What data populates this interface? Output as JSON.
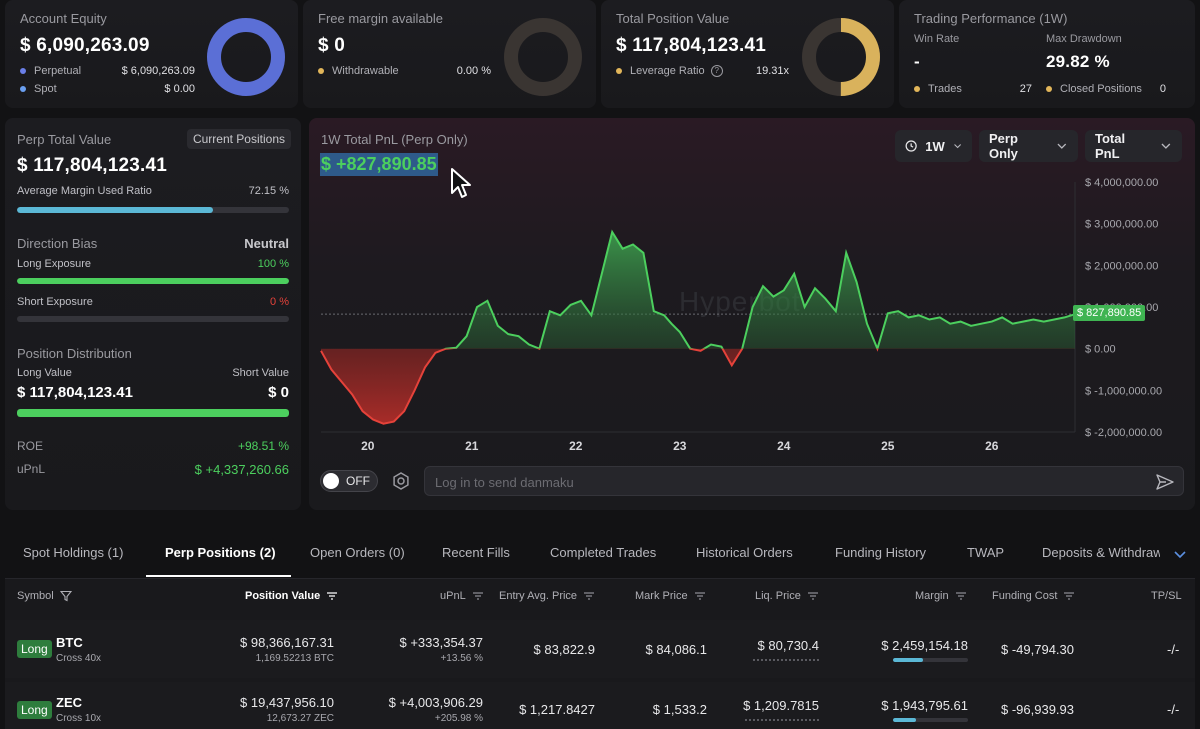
{
  "account_equity": {
    "title": "Account Equity",
    "value": "$ 6,090,263.09",
    "rows": [
      {
        "label": "Perpetual",
        "value": "$ 6,090,263.09"
      },
      {
        "label": "Spot",
        "value": "$ 0.00"
      }
    ],
    "donut_color": "#5b6fd6",
    "dot_colors": [
      "#6a7fe8",
      "#6a9ff0"
    ]
  },
  "free_margin": {
    "title": "Free margin available",
    "value": "$ 0",
    "row_label": "Withdrawable",
    "row_value": "0.00 %",
    "dot_color": "#e2b65a"
  },
  "total_position": {
    "title": "Total Position Value",
    "value": "$ 117,804,123.41",
    "row_label": "Leverage Ratio",
    "row_value": "19.31x",
    "donut_color": "#d9b25c",
    "donut_fraction": 0.5
  },
  "trading_perf": {
    "title": "Trading Performance (1W)",
    "win_rate_label": "Win Rate",
    "win_rate_value": "-",
    "max_dd_label": "Max Drawdown",
    "max_dd_value": "29.82 %",
    "trades_label": "Trades",
    "trades_value": "27",
    "closed_label": "Closed Positions",
    "closed_value": "0"
  },
  "perp_panel": {
    "title": "Perp Total Value",
    "current_positions_button": "Current Positions",
    "value": "$ 117,804,123.41",
    "avg_margin_label": "Average Margin Used Ratio",
    "avg_margin_value": "72.15 %",
    "avg_margin_fraction": 0.7215,
    "direction_label": "Direction Bias",
    "direction_value": "Neutral",
    "long_exposure_label": "Long Exposure",
    "long_exposure_value": "100 %",
    "long_exposure_fraction": 1.0,
    "short_exposure_label": "Short Exposure",
    "short_exposure_value": "0 %",
    "short_exposure_fraction": 0.0,
    "distribution_label": "Position Distribution",
    "long_value_label": "Long Value",
    "short_value_label": "Short Value",
    "long_value": "$ 117,804,123.41",
    "short_value": "$ 0",
    "long_fraction": 1.0,
    "roe_label": "ROE",
    "roe_value": "+98.51 %",
    "upnl_label": "uPnL",
    "upnl_value": "$ +4,337,260.66"
  },
  "chart_panel": {
    "title": "1W Total PnL (Perp Only)",
    "value": "$ +827,890.85",
    "period_button": "1W",
    "scope_button": "Perp Only",
    "metric_button": "Total PnL",
    "watermark": "Hyperbot",
    "current_label": "$ 827,890.85",
    "toggle_label": "OFF",
    "danmaku_placeholder": "Log in to send danmaku"
  },
  "chart_data": {
    "type": "area",
    "title": "1W Total PnL (Perp Only)",
    "x_ticks": [
      "20",
      "21",
      "22",
      "23",
      "24",
      "25",
      "26"
    ],
    "y_ticks": [
      "$ 4,000,000.00",
      "$ 3,000,000.00",
      "$ 2,000,000.00",
      "$ 1,000,000.00",
      "$ 0.00",
      "$ -1,000,000.00",
      "$ -2,000,000.00"
    ],
    "ylim": [
      -2000000,
      4000000
    ],
    "x_range": [
      19.55,
      26.8
    ],
    "current_value": 827890.85,
    "series": [
      {
        "x": [
          19.55,
          19.65,
          19.75,
          19.85,
          19.95,
          20.05,
          20.15,
          20.25,
          20.35,
          20.45,
          20.55,
          20.65,
          20.75,
          20.85,
          20.95,
          21.05,
          21.15,
          21.25,
          21.35,
          21.45,
          21.55,
          21.65,
          21.75,
          21.85,
          21.95,
          22.05,
          22.15,
          22.25,
          22.35,
          22.45,
          22.55,
          22.65,
          22.75,
          22.85,
          22.92,
          23.0,
          23.1,
          23.2,
          23.3,
          23.4,
          23.5,
          23.6,
          23.7,
          23.8,
          23.9,
          24.0,
          24.1,
          24.2,
          24.3,
          24.4,
          24.5,
          24.6,
          24.7,
          24.8,
          24.9,
          25.0,
          25.1,
          25.2,
          25.3,
          25.4,
          25.5,
          25.6,
          25.7,
          25.8,
          25.9,
          26.0,
          26.1,
          26.2,
          26.3,
          26.4,
          26.5,
          26.6,
          26.7,
          26.8
        ],
        "y": [
          -50000,
          -500000,
          -800000,
          -1100000,
          -1500000,
          -1700000,
          -1800000,
          -1750000,
          -1500000,
          -1000000,
          -450000,
          -100000,
          0,
          20000,
          300000,
          1000000,
          1150000,
          550000,
          350000,
          300000,
          100000,
          0,
          900000,
          800000,
          1050000,
          1150000,
          800000,
          1800000,
          2800000,
          2400000,
          2500000,
          2300000,
          900000,
          800000,
          600000,
          400000,
          0,
          -50000,
          100000,
          50000,
          -400000,
          0,
          1000000,
          1500000,
          1250000,
          1400000,
          1800000,
          1000000,
          1450000,
          1200000,
          900000,
          2300000,
          1600000,
          600000,
          0,
          850000,
          900000,
          750000,
          800000,
          700000,
          750000,
          600000,
          650000,
          550000,
          600000,
          650000,
          750000,
          600000,
          650000,
          700000,
          650000,
          700000,
          750000,
          828000
        ]
      }
    ]
  },
  "tabs": [
    {
      "label": "Spot Holdings (1)",
      "active": false
    },
    {
      "label": "Perp Positions (2)",
      "active": true
    },
    {
      "label": "Open Orders (0)",
      "active": false
    },
    {
      "label": "Recent Fills",
      "active": false
    },
    {
      "label": "Completed Trades",
      "active": false
    },
    {
      "label": "Historical Orders",
      "active": false
    },
    {
      "label": "Funding History",
      "active": false
    },
    {
      "label": "TWAP",
      "active": false
    },
    {
      "label": "Deposits & Withdraw",
      "active": false
    }
  ],
  "table": {
    "headers": [
      "Symbol",
      "Position Value",
      "uPnL",
      "Entry Avg. Price",
      "Mark Price",
      "Liq. Price",
      "Margin",
      "Funding Cost",
      "TP/SL"
    ],
    "rows": [
      {
        "side": "Long",
        "symbol": "BTC",
        "mode": "Cross 40x",
        "position_value": "$ 98,366,167.31",
        "position_size": "1,169.52213 BTC",
        "upnl": "$ +333,354.37",
        "upnl_pct": "+13.56 %",
        "entry": "$ 83,822.9",
        "mark": "$ 84,086.1",
        "liq": "$ 80,730.4",
        "margin": "$ 2,459,154.18",
        "margin_fraction": 0.4,
        "funding": "$ -49,794.30",
        "tpsl": "-/-"
      },
      {
        "side": "Long",
        "symbol": "ZEC",
        "mode": "Cross 10x",
        "position_value": "$ 19,437,956.10",
        "position_size": "12,673.27 ZEC",
        "upnl": "$ +4,003,906.29",
        "upnl_pct": "+205.98 %",
        "entry": "$ 1,217.8427",
        "mark": "$ 1,533.2",
        "liq": "$ 1,209.7815",
        "margin": "$ 1,943,795.61",
        "margin_fraction": 0.3,
        "funding": "$ -96,939.93",
        "tpsl": "-/-"
      }
    ]
  }
}
